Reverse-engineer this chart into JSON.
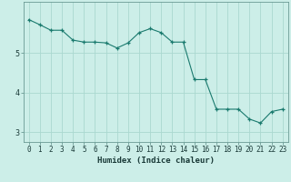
{
  "x": [
    0,
    1,
    2,
    3,
    4,
    5,
    6,
    7,
    8,
    9,
    10,
    11,
    12,
    13,
    14,
    15,
    16,
    17,
    18,
    19,
    20,
    21,
    22,
    23
  ],
  "y": [
    5.85,
    5.72,
    5.58,
    5.58,
    5.33,
    5.28,
    5.28,
    5.26,
    5.13,
    5.26,
    5.52,
    5.62,
    5.52,
    5.28,
    5.28,
    4.33,
    4.33,
    3.58,
    3.58,
    3.58,
    3.33,
    3.23,
    3.52,
    3.58
  ],
  "line_color": "#1a7a6e",
  "marker": "+",
  "background_color": "#cceee8",
  "grid_color": "#aad8d0",
  "xlabel": "Humidex (Indice chaleur)",
  "ylabel": "",
  "title": "",
  "ylim": [
    2.75,
    6.3
  ],
  "xlim": [
    -0.5,
    23.5
  ],
  "yticks": [
    3,
    4,
    5
  ],
  "xticks": [
    0,
    1,
    2,
    3,
    4,
    5,
    6,
    7,
    8,
    9,
    10,
    11,
    12,
    13,
    14,
    15,
    16,
    17,
    18,
    19,
    20,
    21,
    22,
    23
  ],
  "tick_fontsize": 5.5,
  "xlabel_fontsize": 6.5
}
